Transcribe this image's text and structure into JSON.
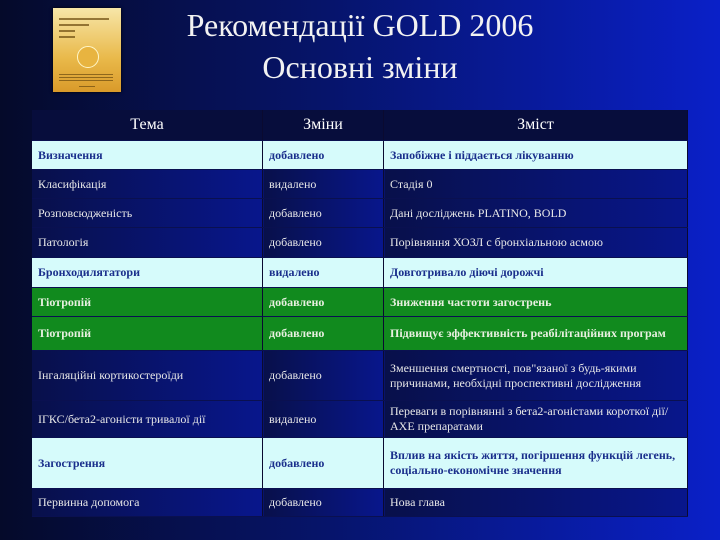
{
  "title": {
    "line1": "Рекомендації GOLD 2006",
    "line2": "Основні зміни"
  },
  "cover": {
    "name": "gold-report-cover"
  },
  "colors": {
    "light_row": "#d6fbfb",
    "green_row": "#118a1e",
    "dark_row": "#08168c"
  },
  "table": {
    "headers": [
      "Тема",
      "Зміни",
      "Зміст"
    ],
    "rows": [
      {
        "style": "light",
        "cells": [
          "Визначення",
          "добавлено",
          "Запобіжне і піддається лікуванню"
        ]
      },
      {
        "style": "dark",
        "cells": [
          "Класифікація",
          "видалено",
          "Стадія 0"
        ]
      },
      {
        "style": "dark",
        "cells": [
          "Розповсюдженість",
          "добавлено",
          "Дані досліджень PLATINO, BOLD"
        ]
      },
      {
        "style": "dark",
        "cells": [
          "Патологія",
          "добавлено",
          "Порівняння ХОЗЛ с бронхіальною асмою"
        ]
      },
      {
        "style": "light",
        "cells": [
          "Бронходилятатори",
          "видалено",
          "Довготривало діючі дорожчі"
        ]
      },
      {
        "style": "green",
        "cells": [
          "Тіотропій",
          "добавлено",
          "Зниження частоти загострень"
        ]
      },
      {
        "style": "green",
        "cells": [
          "Тіотропій",
          "добавлено",
          "Підвищує эффективність реабілітаційних програм"
        ]
      },
      {
        "style": "dark",
        "cells": [
          "Інгаляційні кортикостероїди",
          "добавлено",
          "Зменшення смертності, пов\"язаної з будь-якими причинами, необхідні проспективні дослідження"
        ]
      },
      {
        "style": "dark",
        "cells": [
          "ІГКС/бета2-агоністи тривалої дії",
          "видалено",
          "Переваги в порівнянні з бета2-агоністами короткої дії/АХЕ препаратами"
        ]
      },
      {
        "style": "light",
        "cells": [
          "Загострення",
          "добавлено",
          "Вплив на якість життя, погіршення функцій легень, соціально-економічне значення"
        ]
      },
      {
        "style": "dark",
        "cells": [
          "Первинна допомога",
          "добавлено",
          "Нова глава"
        ]
      }
    ]
  }
}
